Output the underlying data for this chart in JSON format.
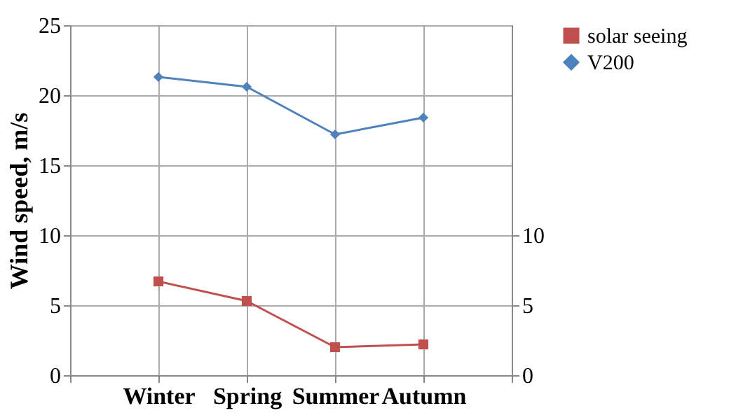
{
  "chart_data": {
    "type": "line",
    "ylabel": "Wind speed, m/s",
    "categories": [
      null,
      "Winter",
      "Spring",
      "Summer",
      "Autumn",
      null
    ],
    "series": [
      {
        "name": "solar seeing",
        "color": "#c0504d",
        "values": [
          null,
          6.7,
          5.3,
          2.0,
          2.2,
          null
        ],
        "axis": "y2",
        "marker": "square"
      },
      {
        "name": "V200",
        "color": "#4f81bd",
        "values": [
          null,
          21.3,
          20.6,
          17.2,
          18.4,
          null
        ],
        "marker": "diamond"
      }
    ],
    "ylim": [
      0,
      25
    ],
    "yticks": [
      0,
      5,
      10,
      15,
      20,
      25
    ],
    "y2lim": [
      0,
      25
    ],
    "y2ticks": [
      0,
      5,
      10
    ],
    "grid": true,
    "legend": "right"
  }
}
